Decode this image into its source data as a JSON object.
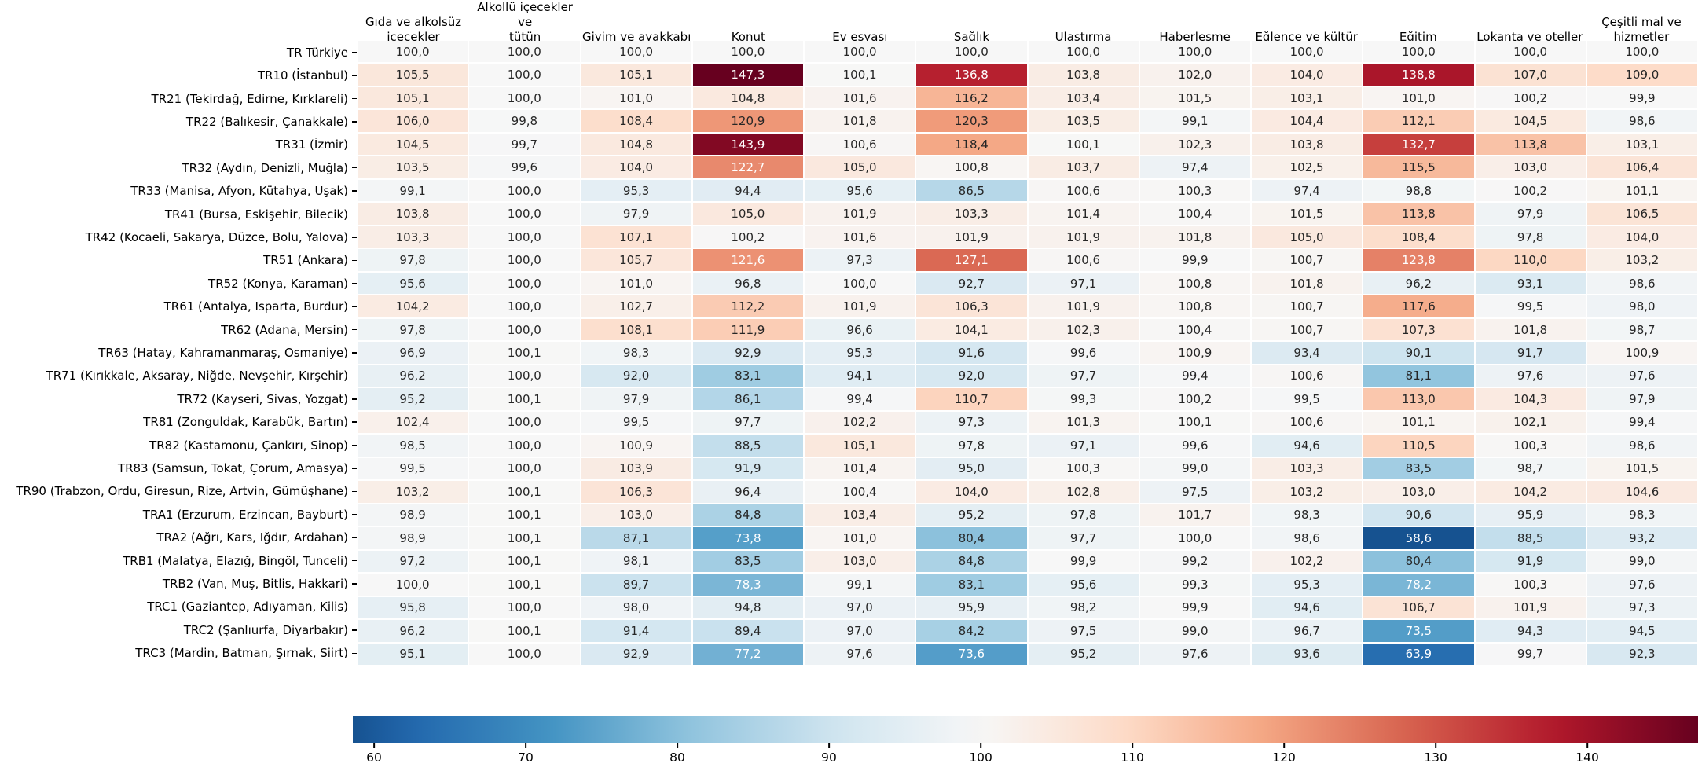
{
  "chart_data": {
    "type": "heatmap",
    "description": "Regional price level index heatmap for Turkey (NUTS-2 regions) by COICOP spending group, Türkiye = 100",
    "columns": [
      "Gıda ve alkolsüz\niçecekler",
      "Alkollü içecekler ve\ntütün",
      "Giyim ve ayakkabı",
      "Konut",
      "Ev eşyası",
      "Sağlık",
      "Ulaştırma",
      "Haberleşme",
      "Eğlence ve kültür",
      "Eğitim",
      "Lokanta ve oteller",
      "Çeşitli mal ve\nhizmetler"
    ],
    "rows": [
      {
        "label": "TR Türkiye",
        "values": [
          100.0,
          100.0,
          100.0,
          100.0,
          100.0,
          100.0,
          100.0,
          100.0,
          100.0,
          100.0,
          100.0,
          100.0
        ]
      },
      {
        "label": "TR10 (İstanbul)",
        "values": [
          105.5,
          100.0,
          105.1,
          147.3,
          100.1,
          136.8,
          103.8,
          102.0,
          104.0,
          138.8,
          107.0,
          109.0
        ]
      },
      {
        "label": "TR21 (Tekirdağ, Edirne, Kırklareli)",
        "values": [
          105.1,
          100.0,
          101.0,
          104.8,
          101.6,
          116.2,
          103.4,
          101.5,
          103.1,
          101.0,
          100.2,
          99.9
        ]
      },
      {
        "label": "TR22 (Balıkesir, Çanakkale)",
        "values": [
          106.0,
          99.8,
          108.4,
          120.9,
          101.8,
          120.3,
          103.5,
          99.1,
          104.4,
          112.1,
          104.5,
          98.6
        ]
      },
      {
        "label": "TR31 (İzmir)",
        "values": [
          104.5,
          99.7,
          104.8,
          143.9,
          100.6,
          118.4,
          100.1,
          102.3,
          103.8,
          132.7,
          113.8,
          103.1
        ]
      },
      {
        "label": "TR32 (Aydın, Denizli, Muğla)",
        "values": [
          103.5,
          99.6,
          104.0,
          122.7,
          105.0,
          100.8,
          103.7,
          97.4,
          102.5,
          115.5,
          103.0,
          106.4
        ]
      },
      {
        "label": "TR33 (Manisa, Afyon, Kütahya, Uşak)",
        "values": [
          99.1,
          100.0,
          95.3,
          94.4,
          95.6,
          86.5,
          100.6,
          100.3,
          97.4,
          98.8,
          100.2,
          101.1
        ]
      },
      {
        "label": "TR41 (Bursa, Eskişehir, Bilecik)",
        "values": [
          103.8,
          100.0,
          97.9,
          105.0,
          101.9,
          103.3,
          101.4,
          100.4,
          101.5,
          113.8,
          97.9,
          106.5
        ]
      },
      {
        "label": "TR42 (Kocaeli, Sakarya, Düzce, Bolu, Yalova)",
        "values": [
          103.3,
          100.0,
          107.1,
          100.2,
          101.6,
          101.9,
          101.9,
          101.8,
          105.0,
          108.4,
          97.8,
          104.0
        ]
      },
      {
        "label": "TR51 (Ankara)",
        "values": [
          97.8,
          100.0,
          105.7,
          121.6,
          97.3,
          127.1,
          100.6,
          99.9,
          100.7,
          123.8,
          110.0,
          103.2
        ]
      },
      {
        "label": "TR52 (Konya, Karaman)",
        "values": [
          95.6,
          100.0,
          101.0,
          96.8,
          100.0,
          92.7,
          97.1,
          100.8,
          101.8,
          96.2,
          93.1,
          98.6
        ]
      },
      {
        "label": "TR61 (Antalya, Isparta, Burdur)",
        "values": [
          104.2,
          100.0,
          102.7,
          112.2,
          101.9,
          106.3,
          101.9,
          100.8,
          100.7,
          117.6,
          99.5,
          98.0
        ]
      },
      {
        "label": "TR62 (Adana, Mersin)",
        "values": [
          97.8,
          100.0,
          108.1,
          111.9,
          96.6,
          104.1,
          102.3,
          100.4,
          100.7,
          107.3,
          101.8,
          98.7
        ]
      },
      {
        "label": "TR63 (Hatay, Kahramanmaraş, Osmaniye)",
        "values": [
          96.9,
          100.1,
          98.3,
          92.9,
          95.3,
          91.6,
          99.6,
          100.9,
          93.4,
          90.1,
          91.7,
          100.9
        ]
      },
      {
        "label": "TR71 (Kırıkkale, Aksaray, Niğde, Nevşehir, Kırşehir)",
        "values": [
          96.2,
          100.0,
          92.0,
          83.1,
          94.1,
          92.0,
          97.7,
          99.4,
          100.6,
          81.1,
          97.6,
          97.6
        ]
      },
      {
        "label": "TR72 (Kayseri, Sivas, Yozgat)",
        "values": [
          95.2,
          100.1,
          97.9,
          86.1,
          99.4,
          110.7,
          99.3,
          100.2,
          99.5,
          113.0,
          104.3,
          97.9
        ]
      },
      {
        "label": "TR81 (Zonguldak, Karabük, Bartın)",
        "values": [
          102.4,
          100.0,
          99.5,
          97.7,
          102.2,
          97.3,
          101.3,
          100.1,
          100.6,
          101.1,
          102.1,
          99.4
        ]
      },
      {
        "label": "TR82 (Kastamonu, Çankırı, Sinop)",
        "values": [
          98.5,
          100.0,
          100.9,
          88.5,
          105.1,
          97.8,
          97.1,
          99.6,
          94.6,
          110.5,
          100.3,
          98.6
        ]
      },
      {
        "label": "TR83 (Samsun, Tokat, Çorum, Amasya)",
        "values": [
          99.5,
          100.0,
          103.9,
          91.9,
          101.4,
          95.0,
          100.3,
          99.0,
          103.3,
          83.5,
          98.7,
          101.5
        ]
      },
      {
        "label": "TR90 (Trabzon, Ordu, Giresun, Rize, Artvin, Gümüşhane)",
        "values": [
          103.2,
          100.1,
          106.3,
          96.4,
          100.4,
          104.0,
          102.8,
          97.5,
          103.2,
          103.0,
          104.2,
          104.6
        ]
      },
      {
        "label": "TRA1 (Erzurum, Erzincan, Bayburt)",
        "values": [
          98.9,
          100.1,
          103.0,
          84.8,
          103.4,
          95.2,
          97.8,
          101.7,
          98.3,
          90.6,
          95.9,
          98.3
        ]
      },
      {
        "label": "TRA2 (Ağrı, Kars, Iğdır, Ardahan)",
        "values": [
          98.9,
          100.1,
          87.1,
          73.8,
          101.0,
          80.4,
          97.7,
          100.0,
          98.6,
          58.6,
          88.5,
          93.2
        ]
      },
      {
        "label": "TRB1 (Malatya, Elazığ, Bingöl, Tunceli)",
        "values": [
          97.2,
          100.1,
          98.1,
          83.5,
          103.0,
          84.8,
          99.9,
          99.2,
          102.2,
          80.4,
          91.9,
          99.0
        ]
      },
      {
        "label": "TRB2 (Van, Muş, Bitlis, Hakkari)",
        "values": [
          100.0,
          100.1,
          89.7,
          78.3,
          99.1,
          83.1,
          95.6,
          99.3,
          95.3,
          78.2,
          100.3,
          97.6
        ]
      },
      {
        "label": "TRC1 (Gaziantep, Adıyaman, Kilis)",
        "values": [
          95.8,
          100.0,
          98.0,
          94.8,
          97.0,
          95.9,
          98.2,
          99.9,
          94.6,
          106.7,
          101.9,
          97.3
        ]
      },
      {
        "label": "TRC2 (Şanlıurfa, Diyarbakır)",
        "values": [
          96.2,
          100.1,
          91.4,
          89.4,
          97.0,
          84.2,
          97.5,
          99.0,
          96.7,
          73.5,
          94.3,
          94.5
        ]
      },
      {
        "label": "TRC3 (Mardin, Batman, Şırnak, Siirt)",
        "values": [
          95.1,
          100.0,
          92.9,
          77.2,
          97.6,
          73.6,
          95.2,
          97.6,
          93.6,
          63.9,
          99.7,
          92.3
        ]
      }
    ],
    "value_format": "one decimal, comma as decimal separator",
    "color_scale": {
      "colormap": "RdBu_r",
      "center": 100,
      "vmin": 58.6,
      "vmax": 147.3,
      "stops_low_to_high": [
        "#053061",
        "#2166ac",
        "#4393c3",
        "#92c5de",
        "#d1e5f0",
        "#f7f7f7",
        "#fddbc7",
        "#f4a582",
        "#d6604d",
        "#b2182b",
        "#67001f"
      ],
      "annotation_text_dark": "#262626",
      "annotation_text_light": "#ffffff"
    },
    "colorbar": {
      "orientation": "horizontal",
      "tick_values": [
        60,
        70,
        80,
        90,
        100,
        110,
        120,
        130,
        140
      ]
    },
    "legend_position": "bottom",
    "grid": "white cell separators"
  }
}
